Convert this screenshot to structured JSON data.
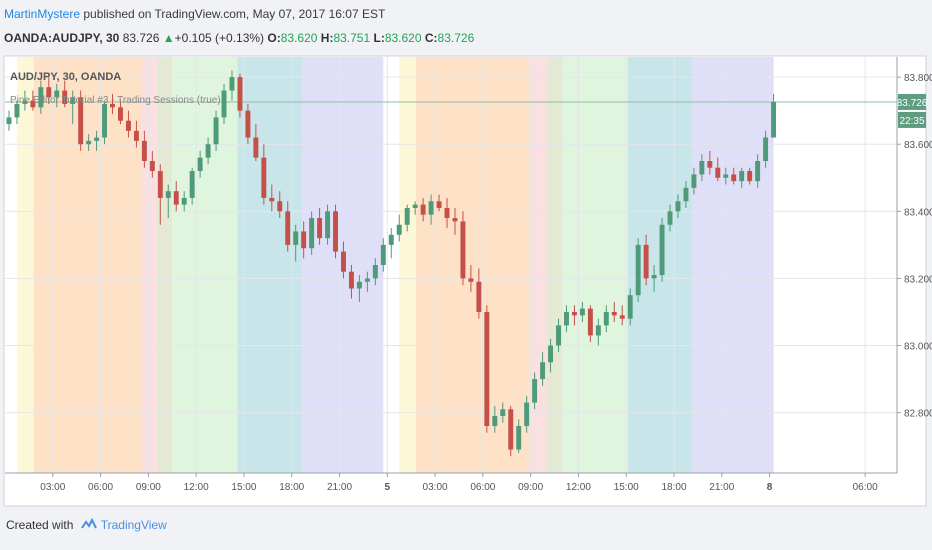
{
  "header": {
    "author": "MartinMystere",
    "published": "published on TradingView.com, May 07, 2017 16:07 EST",
    "symbol_line": "OANDA:AUDJPY, 30",
    "last_price": "83.726",
    "change": "+0.105 (+0.13%)",
    "open_label": "O:",
    "open": "83.620",
    "high_label": "H:",
    "high": "83.751",
    "low_label": "L:",
    "low": "83.620",
    "close_label": "C:",
    "close": "83.726"
  },
  "footer": {
    "created_with": "Created with",
    "brand": "TradingView"
  },
  "colors": {
    "up": "#4f9a78",
    "down": "#c55048",
    "session_orange": "#fde2c8",
    "session_green": "#dff5de",
    "session_teal": "#c8e6ea",
    "session_blue": "#dfdff7",
    "session_yellow": "#fcf8d7",
    "session_pink": "#fbe0e2",
    "session_olive": "#e3e9d2",
    "price_label_bg": "#5e9d80"
  },
  "chart_data": {
    "type": "candlestick",
    "title": "AUD/JPY, 30, OANDA",
    "indicator": "Pine Editor Tutorial #3 - Trading Sessions (true)",
    "ylim": [
      82.62,
      83.86
    ],
    "y_ticks": [
      "83.800",
      "83.600",
      "83.400",
      "83.200",
      "83.000",
      "82.800"
    ],
    "x_ticks": [
      "03:00",
      "06:00",
      "09:00",
      "12:00",
      "15:00",
      "18:00",
      "21:00",
      "5",
      "03:00",
      "06:00",
      "09:00",
      "12:00",
      "15:00",
      "18:00",
      "21:00",
      "8",
      "06:00"
    ],
    "x_tick_positions": [
      6,
      12,
      18,
      24,
      30,
      36,
      42,
      48,
      54,
      60,
      66,
      72,
      78,
      84,
      90,
      96,
      108
    ],
    "bold_ticks": [
      "5",
      "8"
    ],
    "x_range": [
      0,
      112
    ],
    "last_price_label": "83.726",
    "countdown_label": "22:35",
    "sessions": [
      {
        "start": 1.5,
        "end": 3.6,
        "color": "#fcf8d7"
      },
      {
        "start": 3.6,
        "end": 17.2,
        "color": "#fde2c8"
      },
      {
        "start": 17.2,
        "end": 19.1,
        "color": "#fbe0e2"
      },
      {
        "start": 19.1,
        "end": 21.0,
        "color": "#e3e9d2"
      },
      {
        "start": 21.0,
        "end": 29.2,
        "color": "#dff5de"
      },
      {
        "start": 29.2,
        "end": 37.3,
        "color": "#c8e6ea"
      },
      {
        "start": 37.3,
        "end": 47.5,
        "color": "#dfdff7"
      },
      {
        "start": 49.5,
        "end": 51.6,
        "color": "#fcf8d7"
      },
      {
        "start": 51.6,
        "end": 65.9,
        "color": "#fde2c8"
      },
      {
        "start": 65.9,
        "end": 68.0,
        "color": "#fbe0e2"
      },
      {
        "start": 68.0,
        "end": 70.0,
        "color": "#e3e9d2"
      },
      {
        "start": 70.0,
        "end": 78.2,
        "color": "#dff5de"
      },
      {
        "start": 78.2,
        "end": 86.2,
        "color": "#c8e6ea"
      },
      {
        "start": 86.2,
        "end": 96.5,
        "color": "#dfdff7"
      }
    ],
    "candles": [
      {
        "o": 83.66,
        "h": 83.7,
        "l": 83.64,
        "c": 83.68
      },
      {
        "o": 83.68,
        "h": 83.73,
        "l": 83.66,
        "c": 83.72
      },
      {
        "o": 83.72,
        "h": 83.76,
        "l": 83.7,
        "c": 83.73
      },
      {
        "o": 83.73,
        "h": 83.76,
        "l": 83.7,
        "c": 83.71
      },
      {
        "o": 83.71,
        "h": 83.79,
        "l": 83.69,
        "c": 83.77
      },
      {
        "o": 83.77,
        "h": 83.8,
        "l": 83.72,
        "c": 83.74
      },
      {
        "o": 83.74,
        "h": 83.78,
        "l": 83.71,
        "c": 83.76
      },
      {
        "o": 83.76,
        "h": 83.79,
        "l": 83.71,
        "c": 83.72
      },
      {
        "o": 83.72,
        "h": 83.76,
        "l": 83.66,
        "c": 83.74
      },
      {
        "o": 83.74,
        "h": 83.76,
        "l": 83.58,
        "c": 83.6
      },
      {
        "o": 83.6,
        "h": 83.63,
        "l": 83.58,
        "c": 83.61
      },
      {
        "o": 83.61,
        "h": 83.64,
        "l": 83.58,
        "c": 83.62
      },
      {
        "o": 83.62,
        "h": 83.73,
        "l": 83.6,
        "c": 83.72
      },
      {
        "o": 83.72,
        "h": 83.75,
        "l": 83.69,
        "c": 83.71
      },
      {
        "o": 83.71,
        "h": 83.73,
        "l": 83.66,
        "c": 83.67
      },
      {
        "o": 83.67,
        "h": 83.7,
        "l": 83.62,
        "c": 83.64
      },
      {
        "o": 83.64,
        "h": 83.67,
        "l": 83.59,
        "c": 83.61
      },
      {
        "o": 83.61,
        "h": 83.64,
        "l": 83.53,
        "c": 83.55
      },
      {
        "o": 83.55,
        "h": 83.58,
        "l": 83.5,
        "c": 83.52
      },
      {
        "o": 83.52,
        "h": 83.54,
        "l": 83.36,
        "c": 83.44
      },
      {
        "o": 83.44,
        "h": 83.48,
        "l": 83.38,
        "c": 83.46
      },
      {
        "o": 83.46,
        "h": 83.49,
        "l": 83.4,
        "c": 83.42
      },
      {
        "o": 83.42,
        "h": 83.46,
        "l": 83.4,
        "c": 83.44
      },
      {
        "o": 83.44,
        "h": 83.53,
        "l": 83.42,
        "c": 83.52
      },
      {
        "o": 83.52,
        "h": 83.58,
        "l": 83.5,
        "c": 83.56
      },
      {
        "o": 83.56,
        "h": 83.62,
        "l": 83.54,
        "c": 83.6
      },
      {
        "o": 83.6,
        "h": 83.7,
        "l": 83.58,
        "c": 83.68
      },
      {
        "o": 83.68,
        "h": 83.78,
        "l": 83.66,
        "c": 83.76
      },
      {
        "o": 83.76,
        "h": 83.82,
        "l": 83.73,
        "c": 83.8
      },
      {
        "o": 83.8,
        "h": 83.81,
        "l": 83.68,
        "c": 83.7
      },
      {
        "o": 83.7,
        "h": 83.72,
        "l": 83.6,
        "c": 83.62
      },
      {
        "o": 83.62,
        "h": 83.66,
        "l": 83.55,
        "c": 83.56
      },
      {
        "o": 83.56,
        "h": 83.6,
        "l": 83.42,
        "c": 83.44
      },
      {
        "o": 83.44,
        "h": 83.48,
        "l": 83.4,
        "c": 83.43
      },
      {
        "o": 83.43,
        "h": 83.46,
        "l": 83.38,
        "c": 83.4
      },
      {
        "o": 83.4,
        "h": 83.43,
        "l": 83.28,
        "c": 83.3
      },
      {
        "o": 83.3,
        "h": 83.36,
        "l": 83.25,
        "c": 83.34
      },
      {
        "o": 83.34,
        "h": 83.37,
        "l": 83.26,
        "c": 83.29
      },
      {
        "o": 83.29,
        "h": 83.4,
        "l": 83.27,
        "c": 83.38
      },
      {
        "o": 83.38,
        "h": 83.41,
        "l": 83.3,
        "c": 83.32
      },
      {
        "o": 83.32,
        "h": 83.42,
        "l": 83.3,
        "c": 83.4
      },
      {
        "o": 83.4,
        "h": 83.42,
        "l": 83.26,
        "c": 83.28
      },
      {
        "o": 83.28,
        "h": 83.31,
        "l": 83.2,
        "c": 83.22
      },
      {
        "o": 83.22,
        "h": 83.24,
        "l": 83.14,
        "c": 83.17
      },
      {
        "o": 83.17,
        "h": 83.21,
        "l": 83.13,
        "c": 83.19
      },
      {
        "o": 83.19,
        "h": 83.22,
        "l": 83.16,
        "c": 83.2
      },
      {
        "o": 83.2,
        "h": 83.26,
        "l": 83.18,
        "c": 83.24
      },
      {
        "o": 83.24,
        "h": 83.32,
        "l": 83.22,
        "c": 83.3
      },
      {
        "o": 83.3,
        "h": 83.35,
        "l": 83.26,
        "c": 83.33
      },
      {
        "o": 83.33,
        "h": 83.39,
        "l": 83.31,
        "c": 83.36
      },
      {
        "o": 83.36,
        "h": 83.42,
        "l": 83.34,
        "c": 83.41
      },
      {
        "o": 83.41,
        "h": 83.43,
        "l": 83.39,
        "c": 83.42
      },
      {
        "o": 83.42,
        "h": 83.44,
        "l": 83.37,
        "c": 83.39
      },
      {
        "o": 83.39,
        "h": 83.45,
        "l": 83.36,
        "c": 83.43
      },
      {
        "o": 83.43,
        "h": 83.45,
        "l": 83.4,
        "c": 83.41
      },
      {
        "o": 83.41,
        "h": 83.44,
        "l": 83.35,
        "c": 83.38
      },
      {
        "o": 83.38,
        "h": 83.41,
        "l": 83.33,
        "c": 83.37
      },
      {
        "o": 83.37,
        "h": 83.4,
        "l": 83.18,
        "c": 83.2
      },
      {
        "o": 83.2,
        "h": 83.24,
        "l": 83.16,
        "c": 83.19
      },
      {
        "o": 83.19,
        "h": 83.23,
        "l": 83.08,
        "c": 83.1
      },
      {
        "o": 83.1,
        "h": 83.12,
        "l": 82.74,
        "c": 82.76
      },
      {
        "o": 82.76,
        "h": 82.82,
        "l": 82.74,
        "c": 82.79
      },
      {
        "o": 82.79,
        "h": 82.83,
        "l": 82.77,
        "c": 82.81
      },
      {
        "o": 82.81,
        "h": 82.82,
        "l": 82.67,
        "c": 82.69
      },
      {
        "o": 82.69,
        "h": 82.78,
        "l": 82.68,
        "c": 82.76
      },
      {
        "o": 82.76,
        "h": 82.85,
        "l": 82.74,
        "c": 82.83
      },
      {
        "o": 82.83,
        "h": 82.92,
        "l": 82.81,
        "c": 82.9
      },
      {
        "o": 82.9,
        "h": 82.98,
        "l": 82.88,
        "c": 82.95
      },
      {
        "o": 82.95,
        "h": 83.02,
        "l": 82.92,
        "c": 83.0
      },
      {
        "o": 83.0,
        "h": 83.08,
        "l": 82.98,
        "c": 83.06
      },
      {
        "o": 83.06,
        "h": 83.12,
        "l": 83.04,
        "c": 83.1
      },
      {
        "o": 83.1,
        "h": 83.12,
        "l": 83.06,
        "c": 83.09
      },
      {
        "o": 83.09,
        "h": 83.13,
        "l": 83.07,
        "c": 83.11
      },
      {
        "o": 83.11,
        "h": 83.12,
        "l": 83.01,
        "c": 83.03
      },
      {
        "o": 83.03,
        "h": 83.08,
        "l": 83.0,
        "c": 83.06
      },
      {
        "o": 83.06,
        "h": 83.12,
        "l": 83.04,
        "c": 83.1
      },
      {
        "o": 83.1,
        "h": 83.13,
        "l": 83.07,
        "c": 83.09
      },
      {
        "o": 83.09,
        "h": 83.12,
        "l": 83.06,
        "c": 83.08
      },
      {
        "o": 83.08,
        "h": 83.17,
        "l": 83.06,
        "c": 83.15
      },
      {
        "o": 83.15,
        "h": 83.32,
        "l": 83.13,
        "c": 83.3
      },
      {
        "o": 83.3,
        "h": 83.33,
        "l": 83.18,
        "c": 83.2
      },
      {
        "o": 83.2,
        "h": 83.24,
        "l": 83.16,
        "c": 83.21
      },
      {
        "o": 83.21,
        "h": 83.38,
        "l": 83.19,
        "c": 83.36
      },
      {
        "o": 83.36,
        "h": 83.42,
        "l": 83.34,
        "c": 83.4
      },
      {
        "o": 83.4,
        "h": 83.45,
        "l": 83.38,
        "c": 83.43
      },
      {
        "o": 83.43,
        "h": 83.49,
        "l": 83.41,
        "c": 83.47
      },
      {
        "o": 83.47,
        "h": 83.53,
        "l": 83.45,
        "c": 83.51
      },
      {
        "o": 83.51,
        "h": 83.57,
        "l": 83.49,
        "c": 83.55
      },
      {
        "o": 83.55,
        "h": 83.58,
        "l": 83.51,
        "c": 83.53
      },
      {
        "o": 83.53,
        "h": 83.56,
        "l": 83.49,
        "c": 83.5
      },
      {
        "o": 83.5,
        "h": 83.53,
        "l": 83.48,
        "c": 83.51
      },
      {
        "o": 83.51,
        "h": 83.53,
        "l": 83.48,
        "c": 83.49
      },
      {
        "o": 83.49,
        "h": 83.53,
        "l": 83.47,
        "c": 83.52
      },
      {
        "o": 83.52,
        "h": 83.53,
        "l": 83.48,
        "c": 83.49
      },
      {
        "o": 83.49,
        "h": 83.57,
        "l": 83.47,
        "c": 83.55
      },
      {
        "o": 83.55,
        "h": 83.64,
        "l": 83.53,
        "c": 83.62
      },
      {
        "o": 83.62,
        "h": 83.75,
        "l": 83.62,
        "c": 83.726
      }
    ]
  }
}
